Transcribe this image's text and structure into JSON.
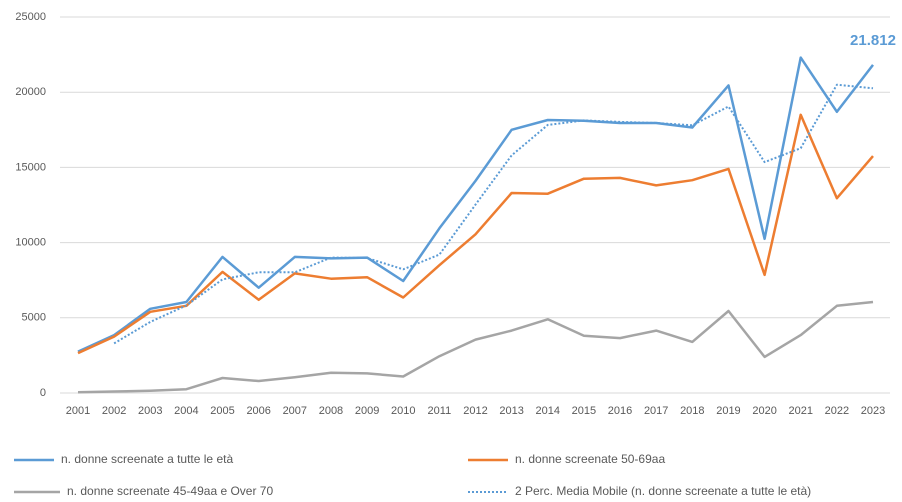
{
  "chart_data": {
    "type": "line",
    "categories": [
      "2001",
      "2002",
      "2003",
      "2004",
      "2005",
      "2006",
      "2007",
      "2008",
      "2009",
      "2010",
      "2011",
      "2012",
      "2013",
      "2014",
      "2015",
      "2016",
      "2017",
      "2018",
      "2019",
      "2020",
      "2021",
      "2022",
      "2023"
    ],
    "series": [
      {
        "name": "n. donne screenate a tutte le età",
        "color": "#5b9bd5",
        "style": "solid",
        "values": [
          2750,
          3850,
          5600,
          6050,
          9050,
          7000,
          9050,
          8950,
          9000,
          7450,
          10950,
          14100,
          17500,
          18150,
          18100,
          17950,
          17950,
          17650,
          20450,
          10250,
          22300,
          18700,
          21812
        ],
        "value_labels": [
          null,
          null,
          null,
          null,
          null,
          null,
          null,
          null,
          null,
          null,
          null,
          null,
          null,
          null,
          null,
          null,
          null,
          null,
          null,
          null,
          null,
          null,
          "21.812"
        ]
      },
      {
        "name": "n. donne screenate 50-69aa",
        "color": "#ed7d31",
        "style": "solid",
        "values": [
          2650,
          3750,
          5400,
          5800,
          8050,
          6200,
          7950,
          7600,
          7700,
          6350,
          8500,
          10550,
          13300,
          13250,
          14250,
          14300,
          13800,
          14150,
          14900,
          7850,
          18500,
          12950,
          15750
        ]
      },
      {
        "name": "n. donne screenate 45-49aa e Over 70",
        "color": "#a5a5a5",
        "style": "solid",
        "values": [
          50,
          100,
          150,
          250,
          1000,
          800,
          1050,
          1350,
          1300,
          1100,
          2450,
          3550,
          4150,
          4900,
          3800,
          3650,
          4150,
          3400,
          5450,
          2400,
          3850,
          5800,
          6050
        ]
      },
      {
        "name": "2 Perc. Media Mobile (n. donne screenate a tutte le età)",
        "color": "#5b9bd5",
        "style": "dotted",
        "values": [
          null,
          3300,
          4725,
          5825,
          7550,
          8025,
          8025,
          9000,
          8975,
          8225,
          9200,
          12525,
          15800,
          17825,
          18125,
          18025,
          17950,
          17800,
          19050,
          15350,
          16275,
          20500,
          20256
        ]
      }
    ],
    "ylim": [
      0,
      25000
    ],
    "yticks": [
      0,
      5000,
      10000,
      15000,
      20000,
      25000
    ],
    "grid": true
  }
}
